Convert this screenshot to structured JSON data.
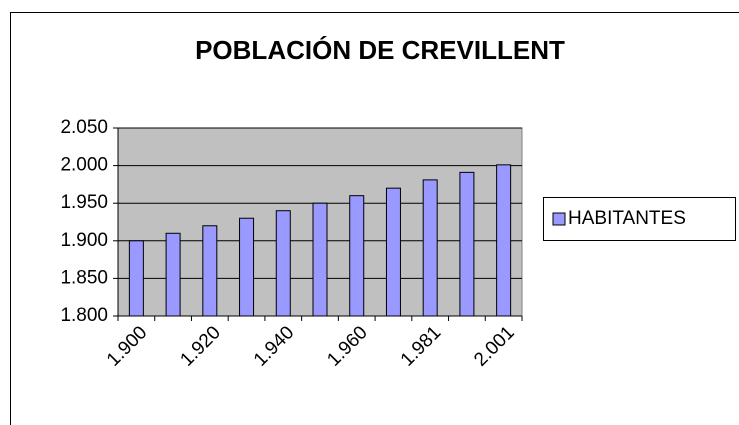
{
  "chart_data": {
    "type": "bar",
    "title": "POBLACIÓN DE CREVILLENT",
    "categories": [
      "1.900",
      null,
      "1.920",
      null,
      "1.940",
      null,
      "1.960",
      null,
      "1.981",
      null,
      "2.001"
    ],
    "series": [
      {
        "name": "HABITANTES",
        "color": "#9999ff",
        "values": [
          1900,
          1910,
          1920,
          1930,
          1940,
          1950,
          1960,
          1970,
          1981,
          1991,
          2001
        ]
      }
    ],
    "ylim": [
      1800,
      2050
    ],
    "yticks": [
      {
        "value": 1800,
        "label": "1.800"
      },
      {
        "value": 1850,
        "label": "1.850"
      },
      {
        "value": 1900,
        "label": "1.900"
      },
      {
        "value": 1950,
        "label": "1.950"
      },
      {
        "value": 2000,
        "label": "2.000"
      },
      {
        "value": 2050,
        "label": "2.050"
      }
    ],
    "grid": true,
    "legend": "right"
  }
}
